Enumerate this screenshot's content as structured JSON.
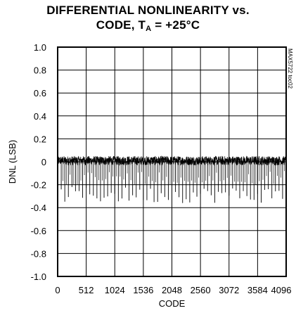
{
  "title": {
    "line1": "DIFFERENTIAL NONLINEARITY vs.",
    "line2_prefix": "CODE, T",
    "line2_sub": "A",
    "line2_suffix": " = +25°C"
  },
  "side_label": "MAX5722 toc02",
  "chart_data": {
    "type": "line",
    "title": "DIFFERENTIAL NONLINEARITY vs. CODE, TA = +25°C",
    "xlabel": "CODE",
    "ylabel": "DNL (LSB)",
    "xlim": [
      0,
      4096
    ],
    "ylim": [
      -1.0,
      1.0
    ],
    "x_ticks": [
      0,
      512,
      1024,
      1536,
      2048,
      2560,
      3072,
      3584,
      4096
    ],
    "x_tick_labels": [
      "0",
      "512",
      "1024",
      "1536",
      "2048",
      "2560",
      "3072",
      "3584",
      "4096"
    ],
    "y_ticks": [
      1.0,
      0.8,
      0.6,
      0.4,
      0.2,
      0,
      -0.2,
      -0.4,
      -0.6,
      -0.8,
      -1.0
    ],
    "y_tick_labels": [
      "1.0",
      "0.8",
      "0.6",
      "0.4",
      "0.2",
      "0",
      "-0.2",
      "-0.4",
      "-0.6",
      "-0.8",
      "-1.0"
    ],
    "grid": true,
    "series": [
      {
        "noise_band": [
          -0.03,
          0.05
        ],
        "spike_period_codes": 64,
        "spike_min_range": [
          -0.36,
          -0.22
        ]
      }
    ]
  }
}
